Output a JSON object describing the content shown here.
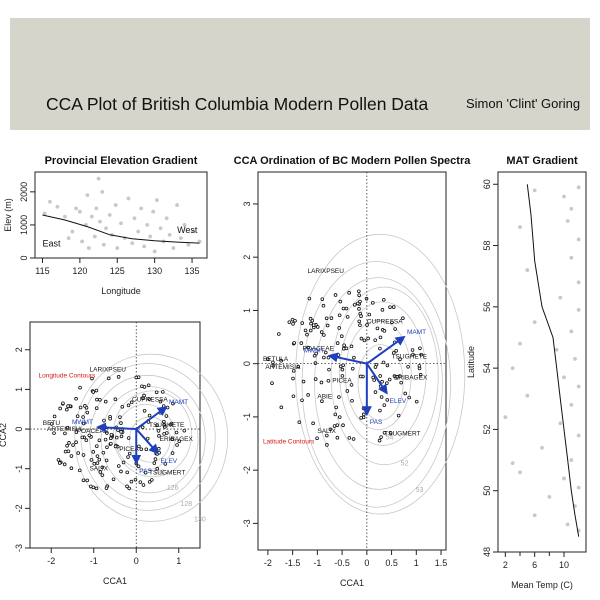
{
  "banner": {
    "title": "CCA Plot of British Columbia Modern Pollen Data",
    "author": "Simon 'Clint' Goring"
  },
  "chart_data": [
    {
      "id": "elevation",
      "type": "scatter",
      "title": "Provincial Elevation Gradient",
      "xlabel": "Longitude",
      "ylabel": "Elev (m)",
      "xlim": [
        114,
        137
      ],
      "ylim": [
        0,
        2600
      ],
      "xticks": [
        115,
        120,
        125,
        130,
        135
      ],
      "yticks": [
        0,
        1000,
        2000
      ],
      "annotations": [
        {
          "text": "East",
          "x": 115,
          "y": 350
        },
        {
          "text": "West",
          "x": 133,
          "y": 750
        }
      ],
      "points_color": "#c9c9c2",
      "fit_line": {
        "x": [
          115,
          118,
          121,
          124,
          127,
          130,
          133,
          136
        ],
        "y": [
          1300,
          1150,
          950,
          700,
          580,
          520,
          480,
          450
        ]
      },
      "points": [
        {
          "x": 115.3,
          "y": 1350
        },
        {
          "x": 116,
          "y": 1700
        },
        {
          "x": 117,
          "y": 1550
        },
        {
          "x": 118,
          "y": 1250
        },
        {
          "x": 118.5,
          "y": 600
        },
        {
          "x": 119,
          "y": 800
        },
        {
          "x": 119.5,
          "y": 1500
        },
        {
          "x": 120,
          "y": 1400
        },
        {
          "x": 120.3,
          "y": 500
        },
        {
          "x": 120.8,
          "y": 1000
        },
        {
          "x": 121,
          "y": 1900
        },
        {
          "x": 121.2,
          "y": 300
        },
        {
          "x": 121.6,
          "y": 1250
        },
        {
          "x": 122,
          "y": 650
        },
        {
          "x": 122.2,
          "y": 1500
        },
        {
          "x": 122.5,
          "y": 2400
        },
        {
          "x": 122.7,
          "y": 1100
        },
        {
          "x": 123,
          "y": 2000
        },
        {
          "x": 123.2,
          "y": 400
        },
        {
          "x": 123.5,
          "y": 900
        },
        {
          "x": 124,
          "y": 1300
        },
        {
          "x": 124.3,
          "y": 700
        },
        {
          "x": 124.8,
          "y": 1600
        },
        {
          "x": 125,
          "y": 300
        },
        {
          "x": 125.5,
          "y": 1050
        },
        {
          "x": 126,
          "y": 600
        },
        {
          "x": 126.5,
          "y": 1800
        },
        {
          "x": 127,
          "y": 450
        },
        {
          "x": 127.3,
          "y": 1200
        },
        {
          "x": 127.8,
          "y": 800
        },
        {
          "x": 128.2,
          "y": 1500
        },
        {
          "x": 128.6,
          "y": 350
        },
        {
          "x": 129,
          "y": 1000
        },
        {
          "x": 129.4,
          "y": 650
        },
        {
          "x": 129.8,
          "y": 1400
        },
        {
          "x": 130,
          "y": 200
        },
        {
          "x": 130.3,
          "y": 1750
        },
        {
          "x": 130.8,
          "y": 900
        },
        {
          "x": 131.2,
          "y": 500
        },
        {
          "x": 131.6,
          "y": 1200
        },
        {
          "x": 132,
          "y": 700
        },
        {
          "x": 132.5,
          "y": 300
        },
        {
          "x": 133,
          "y": 1600
        },
        {
          "x": 133.5,
          "y": 600
        },
        {
          "x": 134,
          "y": 1000
        },
        {
          "x": 134.5,
          "y": 400
        },
        {
          "x": 135.2,
          "y": 800
        },
        {
          "x": 136,
          "y": 500
        }
      ]
    },
    {
      "id": "cca-longitude",
      "type": "scatter",
      "title": "",
      "xlabel": "CCA1",
      "ylabel": "CCA2",
      "xlim": [
        -2.5,
        1.5
      ],
      "ylim": [
        -3,
        2.7
      ],
      "xticks": [
        -2,
        -1,
        0,
        1
      ],
      "yticks": [
        -3,
        -2,
        -1,
        0,
        1,
        2
      ],
      "contour_label": "Longitude Contours",
      "contour_label_pos": {
        "x": -2.3,
        "y": 1.3
      },
      "contour_values": [
        "122",
        "126",
        "128",
        "130"
      ],
      "species": [
        {
          "text": "LARIXPSEU",
          "x": -1.1,
          "y": 1.45
        },
        {
          "text": "CUPRESSA",
          "x": -0.1,
          "y": 0.7
        },
        {
          "text": "POACEAE",
          "x": -1.4,
          "y": -0.1
        },
        {
          "text": "BETU",
          "x": -2.2,
          "y": 0.1
        },
        {
          "text": "ARTEMISIA",
          "x": -2.1,
          "y": -0.05
        },
        {
          "text": "TSUGHETE",
          "x": 0.3,
          "y": 0.05
        },
        {
          "text": "ERIBAGEX",
          "x": 0.55,
          "y": -0.3
        },
        {
          "text": "PICEA",
          "x": -0.4,
          "y": -0.55
        },
        {
          "text": "SALIX",
          "x": -1.1,
          "y": -1.05
        },
        {
          "text": "TSUGMERT",
          "x": 0.3,
          "y": -1.15
        }
      ],
      "arrows": [
        {
          "label": "MAMT",
          "x": 0.7,
          "y": 0.55
        },
        {
          "label": "MWMT",
          "x": -0.9,
          "y": 0.05
        },
        {
          "label": "PAS",
          "x": 0.0,
          "y": -0.85
        },
        {
          "label": "ELEV",
          "x": 0.5,
          "y": -0.6
        }
      ]
    },
    {
      "id": "cca-main",
      "type": "scatter",
      "title": "CCA Ordination of BC Modern Pollen Spectra",
      "xlabel": "CCA1",
      "ylabel": "",
      "xlim": [
        -2.2,
        1.6
      ],
      "ylim": [
        -3.5,
        3.6
      ],
      "xticks": [
        -2.0,
        -1.5,
        -1.0,
        -0.5,
        0.0,
        0.5,
        1.0,
        1.5
      ],
      "yticks": [
        -3,
        -2,
        -1,
        0,
        1,
        2,
        3
      ],
      "contour_label": "Latitude Contours",
      "contour_label_pos": {
        "x": -2.1,
        "y": -1.5
      },
      "contour_values": [
        "54",
        "52",
        "53"
      ],
      "species": [
        {
          "text": "LARIXPSEU",
          "x": -1.2,
          "y": 1.7
        },
        {
          "text": "CUPRESSA",
          "x": 0.0,
          "y": 0.75
        },
        {
          "text": "POACEAE",
          "x": -1.3,
          "y": 0.25
        },
        {
          "text": "BETULA",
          "x": -2.1,
          "y": 0.05
        },
        {
          "text": "ARTEMISIA",
          "x": -2.05,
          "y": -0.1
        },
        {
          "text": "TSUGHETE",
          "x": 0.5,
          "y": 0.1
        },
        {
          "text": "ERIBAGEX",
          "x": 0.55,
          "y": -0.3
        },
        {
          "text": "PICEA",
          "x": -0.7,
          "y": -0.35
        },
        {
          "text": "ABIE",
          "x": -1.0,
          "y": -0.65
        },
        {
          "text": "SALIX",
          "x": -1.0,
          "y": -1.3
        },
        {
          "text": "TSUGMERT",
          "x": 0.35,
          "y": -1.35
        }
      ],
      "arrows": [
        {
          "label": "MAMT",
          "x": 0.75,
          "y": 0.5
        },
        {
          "label": "MWMT",
          "x": -0.75,
          "y": 0.15
        },
        {
          "label": "PAS",
          "x": 0.0,
          "y": -0.95
        },
        {
          "label": "ELEV",
          "x": 0.4,
          "y": -0.55
        }
      ]
    },
    {
      "id": "mat",
      "type": "scatter",
      "title": "MAT Gradient",
      "xlabel": "Mean Temp (C)",
      "ylabel": "Latitude",
      "xlim": [
        1,
        13
      ],
      "ylim": [
        48,
        60.4
      ],
      "xticks": [
        2,
        6,
        10
      ],
      "xticks_minor": [
        4,
        8
      ],
      "yticks": [
        48,
        50,
        52,
        54,
        56,
        58,
        60
      ],
      "points_color": "#c9c9c2",
      "fit_line": {
        "x": [
          5.0,
          5.5,
          6.0,
          7.0,
          8.5,
          9.0,
          9.5,
          10.0,
          10.5,
          11.0,
          11.5,
          12.0
        ],
        "y": [
          60.0,
          59.0,
          57.5,
          56.0,
          55.0,
          54.0,
          53.0,
          52.0,
          51.0,
          50.0,
          49.2,
          48.5
        ]
      },
      "points": [
        {
          "x": 6,
          "y": 59.8
        },
        {
          "x": 10,
          "y": 59.6
        },
        {
          "x": 12,
          "y": 59.9
        },
        {
          "x": 11,
          "y": 59.2
        },
        {
          "x": 4,
          "y": 58.6
        },
        {
          "x": 10.5,
          "y": 58.8
        },
        {
          "x": 12,
          "y": 58.2
        },
        {
          "x": 11,
          "y": 57.6
        },
        {
          "x": 5,
          "y": 57.2
        },
        {
          "x": 12,
          "y": 56.8
        },
        {
          "x": 9.5,
          "y": 56.3
        },
        {
          "x": 12,
          "y": 55.9
        },
        {
          "x": 6,
          "y": 55.5
        },
        {
          "x": 11,
          "y": 55.2
        },
        {
          "x": 4,
          "y": 54.8
        },
        {
          "x": 9,
          "y": 54.6
        },
        {
          "x": 11.5,
          "y": 54.3
        },
        {
          "x": 3,
          "y": 54.0
        },
        {
          "x": 10,
          "y": 53.7
        },
        {
          "x": 12,
          "y": 53.4
        },
        {
          "x": 5,
          "y": 53.1
        },
        {
          "x": 11,
          "y": 52.8
        },
        {
          "x": 2,
          "y": 52.4
        },
        {
          "x": 9.5,
          "y": 52.2
        },
        {
          "x": 12,
          "y": 51.8
        },
        {
          "x": 7,
          "y": 51.4
        },
        {
          "x": 11,
          "y": 51.0
        },
        {
          "x": 4,
          "y": 50.6
        },
        {
          "x": 10,
          "y": 50.4
        },
        {
          "x": 12,
          "y": 50.1
        },
        {
          "x": 8,
          "y": 49.8
        },
        {
          "x": 11.5,
          "y": 49.5
        },
        {
          "x": 6,
          "y": 49.2
        },
        {
          "x": 10.5,
          "y": 48.9
        },
        {
          "x": 12,
          "y": 48.7
        },
        {
          "x": 3,
          "y": 50.9
        }
      ]
    }
  ]
}
